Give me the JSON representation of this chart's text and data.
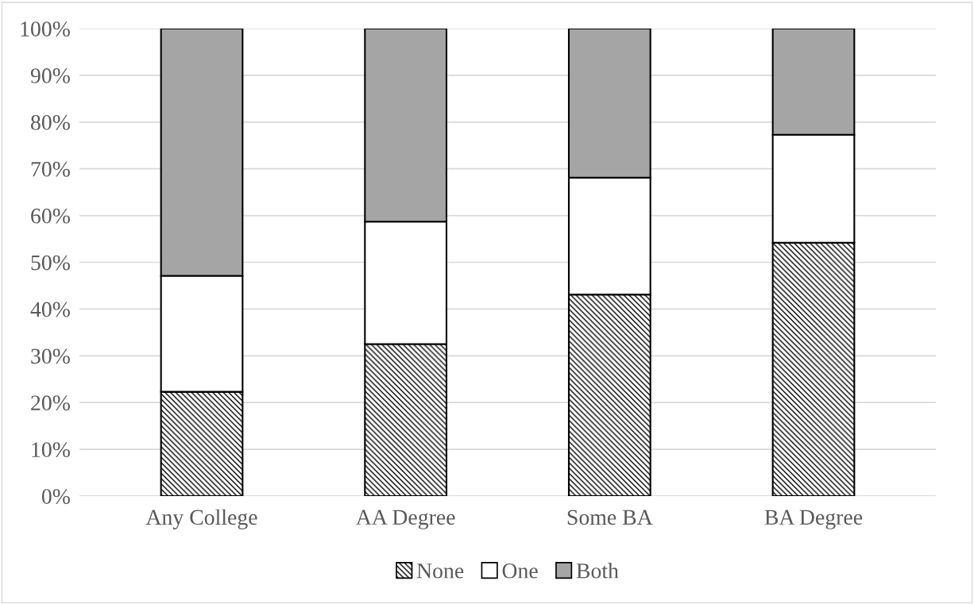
{
  "chart_data": {
    "type": "bar",
    "stacked": true,
    "categories": [
      "Any College",
      "AA Degree",
      "Some BA",
      "BA Degree"
    ],
    "series": [
      {
        "name": "None",
        "color": "#000000",
        "values": [
          22.3,
          32.5,
          43.1,
          54.2
        ]
      },
      {
        "name": "One",
        "color": "#ffffff",
        "values": [
          24.8,
          26.2,
          25.0,
          23.1
        ]
      },
      {
        "name": "Both",
        "color": "#a5a5a5",
        "values": [
          52.9,
          41.3,
          31.9,
          22.7
        ]
      }
    ],
    "ylim": [
      0,
      100
    ],
    "yticks": [
      {
        "value": 0,
        "label": "0%"
      },
      {
        "value": 10,
        "label": "10%"
      },
      {
        "value": 20,
        "label": "20%"
      },
      {
        "value": 30,
        "label": "30%"
      },
      {
        "value": 40,
        "label": "40%"
      },
      {
        "value": 50,
        "label": "50%"
      },
      {
        "value": 60,
        "label": "60%"
      },
      {
        "value": 70,
        "label": "70%"
      },
      {
        "value": 80,
        "label": "80%"
      },
      {
        "value": 90,
        "label": "90%"
      },
      {
        "value": 100,
        "label": "100%"
      }
    ],
    "grid": "y",
    "legend": "bottom"
  }
}
